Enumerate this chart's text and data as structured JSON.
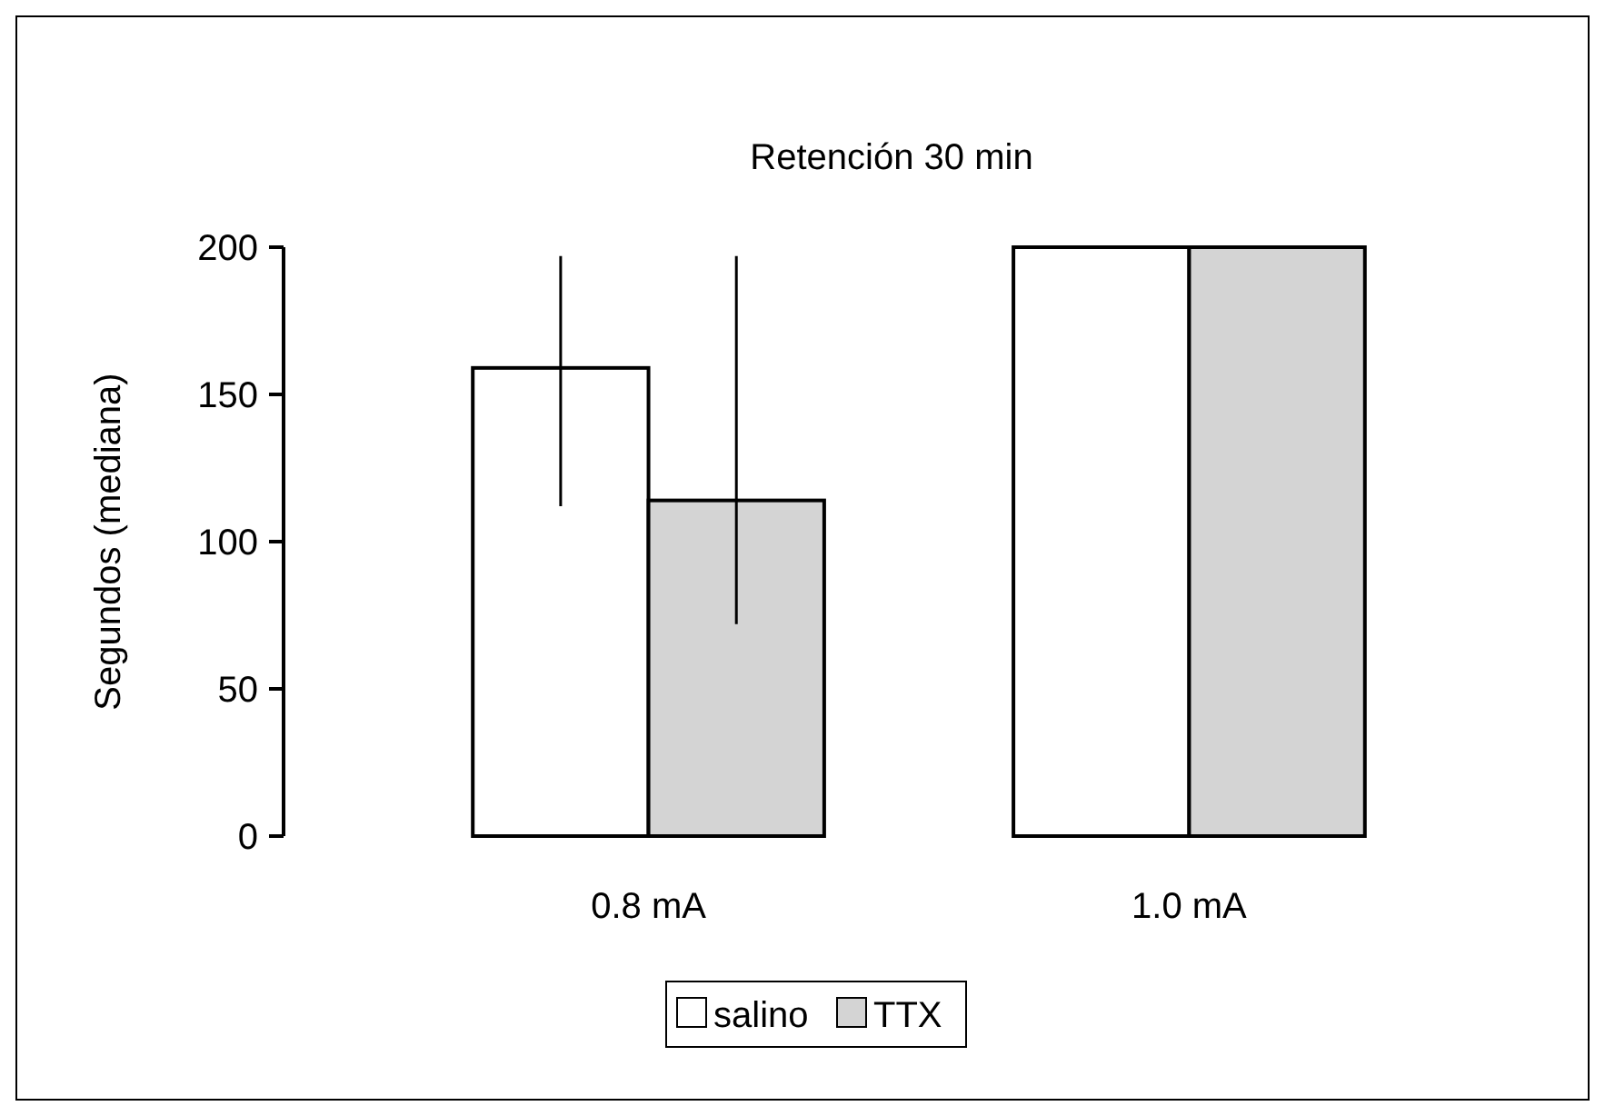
{
  "chart_data": {
    "type": "bar",
    "title": "Retención 30 min",
    "ylabel": "Segundos (mediana)",
    "categories": [
      "0.8 mA",
      "1.0 mA"
    ],
    "series": [
      {
        "name": "salino",
        "color": "#ffffff",
        "values": [
          159,
          200
        ],
        "errors": [
          [
            112,
            197
          ],
          null
        ]
      },
      {
        "name": "TTX",
        "color": "#d4d4d4",
        "values": [
          114,
          200
        ],
        "errors": [
          [
            72,
            197
          ],
          null
        ]
      }
    ],
    "ylim": [
      0,
      200
    ],
    "yticks": [
      0,
      50,
      100,
      150,
      200
    ],
    "grid": false,
    "legend": "bottom"
  }
}
